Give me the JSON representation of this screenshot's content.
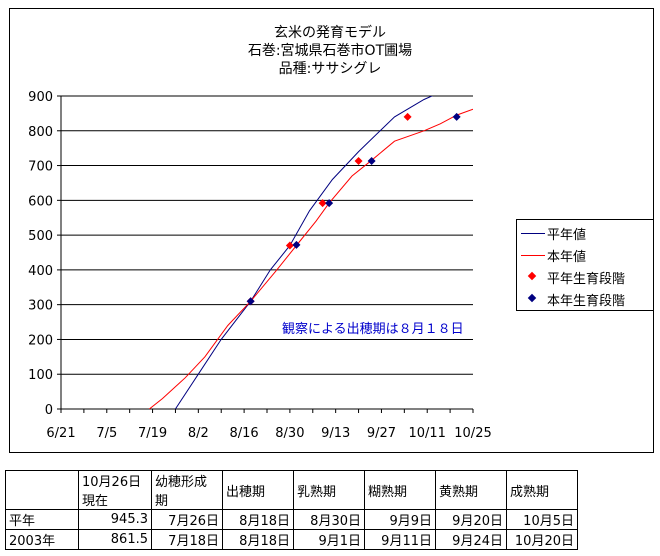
{
  "chart_data": {
    "type": "line",
    "title": [
      "玄米の発育モデル",
      "石巻:宮城県石巻市OT圃場",
      "品種:ササシグレ"
    ],
    "ylim": [
      0,
      900
    ],
    "y_ticks": [
      0,
      100,
      200,
      300,
      400,
      500,
      600,
      700,
      800,
      900
    ],
    "x_range": [
      "2003-06-21",
      "2003-10-25"
    ],
    "x_tick_labels": [
      "6/21",
      "7/5",
      "7/19",
      "8/2",
      "8/16",
      "8/30",
      "9/13",
      "9/27",
      "10/11",
      "10/25"
    ],
    "x_tick_dates": [
      "2003-06-21",
      "2003-07-05",
      "2003-07-19",
      "2003-08-02",
      "2003-08-16",
      "2003-08-30",
      "2003-09-13",
      "2003-09-27",
      "2003-10-11",
      "2003-10-25"
    ],
    "grid": "horizontal",
    "legend_position": "right",
    "series": [
      {
        "name": "平年値",
        "color": "#000080",
        "style": "line",
        "points": [
          [
            "2003-07-26",
            0
          ],
          [
            "2003-08-02",
            100
          ],
          [
            "2003-08-09",
            200
          ],
          [
            "2003-08-18",
            310
          ],
          [
            "2003-08-24",
            400
          ],
          [
            "2003-08-30",
            470
          ],
          [
            "2003-09-05",
            570
          ],
          [
            "2003-09-12",
            660
          ],
          [
            "2003-09-20",
            740
          ],
          [
            "2003-10-01",
            840
          ],
          [
            "2003-10-10",
            890
          ],
          [
            "2003-10-16",
            915
          ]
        ]
      },
      {
        "name": "本年値",
        "color": "#ff0000",
        "style": "line",
        "points": [
          [
            "2003-07-18",
            0
          ],
          [
            "2003-07-22",
            30
          ],
          [
            "2003-07-29",
            90
          ],
          [
            "2003-08-04",
            150
          ],
          [
            "2003-08-11",
            240
          ],
          [
            "2003-08-18",
            310
          ],
          [
            "2003-08-26",
            400
          ],
          [
            "2003-09-01",
            470
          ],
          [
            "2003-09-07",
            540
          ],
          [
            "2003-09-11",
            592
          ],
          [
            "2003-09-18",
            670
          ],
          [
            "2003-09-24",
            715
          ],
          [
            "2003-10-01",
            770
          ],
          [
            "2003-10-10",
            800
          ],
          [
            "2003-10-15",
            820
          ],
          [
            "2003-10-20",
            845
          ],
          [
            "2003-10-25",
            862
          ]
        ]
      },
      {
        "name": "平年生育段階",
        "color": "#ff0000",
        "style": "marker",
        "points": [
          [
            "2003-08-18",
            310
          ],
          [
            "2003-08-30",
            470
          ],
          [
            "2003-09-09",
            592
          ],
          [
            "2003-09-20",
            713
          ],
          [
            "2003-10-05",
            840
          ]
        ]
      },
      {
        "name": "本年生育段階",
        "color": "#000080",
        "style": "marker",
        "points": [
          [
            "2003-08-18",
            310
          ],
          [
            "2003-09-01",
            472
          ],
          [
            "2003-09-11",
            592
          ],
          [
            "2003-09-24",
            713
          ],
          [
            "2003-10-20",
            840
          ]
        ]
      }
    ],
    "annotation": "観察による出穂期は８月１８日"
  },
  "table": {
    "header": [
      "",
      "10月26日\n現在",
      "幼穂形成\n期",
      "出穂期",
      "乳熟期",
      "糊熟期",
      "黄熟期",
      "成熟期"
    ],
    "rows": [
      [
        "平年",
        "945.3",
        "7月26日",
        "8月18日",
        "8月30日",
        "9月9日",
        "9月20日",
        "10月5日"
      ],
      [
        "2003年",
        "861.5",
        "7月18日",
        "8月18日",
        "9月1日",
        "9月11日",
        "9月24日",
        "10月20日"
      ]
    ]
  }
}
